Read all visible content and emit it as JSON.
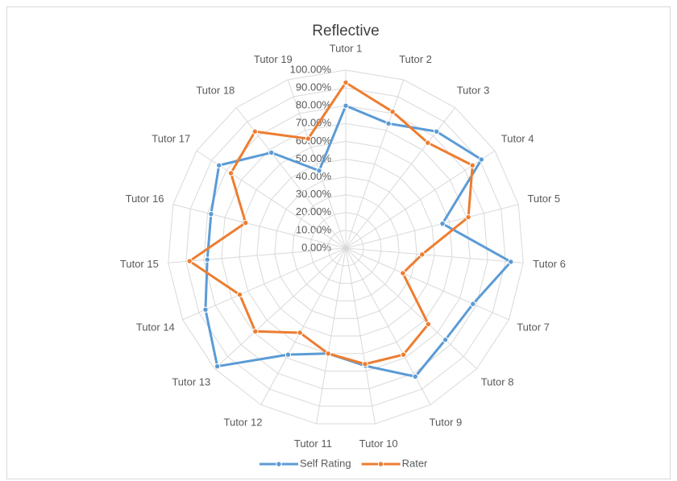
{
  "chart_data": {
    "type": "radar",
    "title": "Reflective",
    "categories": [
      "Tutor 1",
      "Tutor 2",
      "Tutor 3",
      "Tutor 4",
      "Tutor 5",
      "Tutor 6",
      "Tutor 7",
      "Tutor 8",
      "Tutor 9",
      "Tutor 10",
      "Tutor 11",
      "Tutor 12",
      "Tutor 13",
      "Tutor 14",
      "Tutor 15",
      "Tutor 16",
      "Tutor 17",
      "Tutor 18",
      "Tutor 19"
    ],
    "series": [
      {
        "name": "Self Rating",
        "color": "#5b9bd5",
        "values": [
          80,
          74,
          83,
          91,
          56,
          93,
          78,
          76,
          82,
          67,
          60,
          68,
          98,
          86,
          78,
          78,
          85,
          68,
          46
        ]
      },
      {
        "name": "Rater",
        "color": "#ed7d31",
        "values": [
          93,
          81,
          75,
          85,
          71,
          43,
          35,
          63,
          68,
          66,
          60,
          54,
          69,
          65,
          88,
          58,
          77,
          83,
          65
        ]
      }
    ],
    "ylim": [
      0,
      100
    ],
    "yticks": [
      {
        "value": 0,
        "label": "0.00%"
      },
      {
        "value": 10,
        "label": "10.00%"
      },
      {
        "value": 20,
        "label": "20.00%"
      },
      {
        "value": 30,
        "label": "30.00%"
      },
      {
        "value": 40,
        "label": "40.00%"
      },
      {
        "value": 50,
        "label": "50.00%"
      },
      {
        "value": 60,
        "label": "60.00%"
      },
      {
        "value": 70,
        "label": "70.00%"
      },
      {
        "value": 80,
        "label": "80.00%"
      },
      {
        "value": 90,
        "label": "90.00%"
      },
      {
        "value": 100,
        "label": "100.00%"
      }
    ],
    "grid": true,
    "legend": "bottom"
  }
}
